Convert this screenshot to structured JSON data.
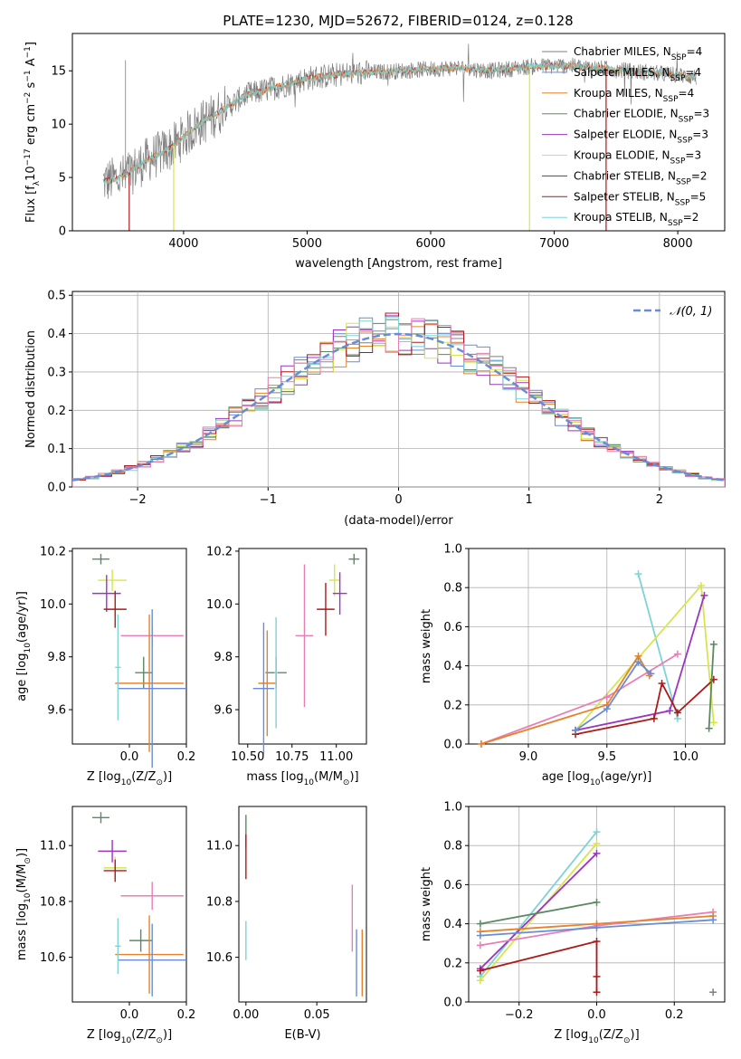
{
  "figure": {
    "title": "PLATE=1230, MJD=52672, FIBERID=0124, z=0.128"
  },
  "model_colors": {
    "Chabrier MILES": "#7f7f7f",
    "Salpeter MILES": "#6a8cd8",
    "Kroupa MILES": "#e8822a",
    "Chabrier ELODIE": "#5a8a62",
    "Salpeter ELODIE": "#9b35c0",
    "Kroupa ELODIE": "#d6e64a",
    "Chabrier STELIB": "#4a4a4a",
    "Salpeter STELIB": "#b01818",
    "Kroupa STELIB": "#7dd3d6",
    "Pink": "#e77fb6"
  },
  "chart_data": [
    {
      "type": "line",
      "id": "spectrum",
      "xlabel": "wavelength [Angstrom, rest frame]",
      "ylabel_main": "Flux [f",
      "ylabel_sub": "λ",
      "ylabel_mid": "10",
      "ylabel_sup1": "−17",
      "ylabel_tail": " erg cm",
      "ylabel_sup2": "−2",
      "ylabel_tail2": " s",
      "ylabel_sup3": "−1",
      "ylabel_tail3": " A",
      "ylabel_sup4": "−1",
      "ylabel_close": "]",
      "xlim": [
        3100,
        8380
      ],
      "ylim": [
        0,
        18.5
      ],
      "xticks": [
        "4000",
        "5000",
        "6000",
        "7000",
        "8000"
      ],
      "yticks": [
        "0",
        "5",
        "10",
        "15"
      ],
      "continuum_points": [
        [
          3350,
          4.6
        ],
        [
          3500,
          5.0
        ],
        [
          3700,
          6.6
        ],
        [
          3900,
          7.8
        ],
        [
          4100,
          9.8
        ],
        [
          4300,
          11.2
        ],
        [
          4500,
          12.7
        ],
        [
          4800,
          13.6
        ],
        [
          5000,
          14.3
        ],
        [
          5300,
          14.7
        ],
        [
          5600,
          14.9
        ],
        [
          5900,
          15.1
        ],
        [
          6200,
          15.3
        ],
        [
          6500,
          15.0
        ],
        [
          6800,
          15.4
        ],
        [
          7100,
          15.5
        ],
        [
          7400,
          15.2
        ],
        [
          7700,
          14.9
        ],
        [
          8000,
          14.6
        ],
        [
          8150,
          14.4
        ]
      ],
      "legend": [
        {
          "label": "Chabrier MILES, N",
          "sub": "SSP",
          "tail": "=4",
          "color": "#7f7f7f"
        },
        {
          "label": "Salpeter MILES, N",
          "sub": "SSP",
          "tail": "=4",
          "color": "#6a8cd8"
        },
        {
          "label": "Kroupa MILES, N",
          "sub": "SSP",
          "tail": "=4",
          "color": "#e8822a"
        },
        {
          "label": "Chabrier ELODIE, N",
          "sub": "SSP",
          "tail": "=3",
          "color": "#5a8a62"
        },
        {
          "label": "Salpeter ELODIE, N",
          "sub": "SSP",
          "tail": "=3",
          "color": "#9b35c0"
        },
        {
          "label": "Kroupa ELODIE, N",
          "sub": "SSP",
          "tail": "=3",
          "color": "#d6e64a"
        },
        {
          "label": "Chabrier STELIB, N",
          "sub": "SSP",
          "tail": "=2",
          "color": "#4a4a4a"
        },
        {
          "label": "Salpeter STELIB, N",
          "sub": "SSP",
          "tail": "=5",
          "color": "#b01818"
        },
        {
          "label": "Kroupa STELIB, N",
          "sub": "SSP",
          "tail": "=2",
          "color": "#7dd3d6"
        }
      ]
    },
    {
      "type": "bar",
      "id": "histogram",
      "xlabel": "(data-model)/error",
      "ylabel": "Normed distribution",
      "xlim": [
        -2.5,
        2.5
      ],
      "ylim": [
        0,
        0.51
      ],
      "xticks": [
        -2,
        -1,
        0,
        1,
        2
      ],
      "xtick_labels": [
        "−2",
        "−1",
        "0",
        "1",
        "2"
      ],
      "yticks": [
        0,
        0.1,
        0.2,
        0.3,
        0.4,
        0.5
      ],
      "ytick_labels": [
        "0.0",
        "0.1",
        "0.2",
        "0.3",
        "0.4",
        "0.5"
      ],
      "bin_width": 0.1,
      "bin_start": -2.5,
      "series_colors": [
        "#7f7f7f",
        "#6a8cd8",
        "#e8822a",
        "#5a8a62",
        "#9b35c0",
        "#d6e64a",
        "#b01818",
        "#7dd3d6",
        "#e77fb6"
      ],
      "gaussian_label": "𝒩(0, 1)",
      "gaussian_color": "#6a8cd8"
    },
    {
      "type": "scatter",
      "id": "age-vs-z",
      "xlabel": "Z [log",
      "xlabel_sub": "10",
      "xlabel_tail": "(Z/Z",
      "xlabel_sub2": "⊙",
      "xlabel_close": ")]",
      "ylabel": "age  [log",
      "ylabel_sub": "10",
      "ylabel_tail": "(age/yr)]",
      "xlim": [
        -0.2,
        0.2
      ],
      "ylim": [
        9.47,
        10.21
      ],
      "xticks": [
        "0.0",
        "0.2"
      ],
      "yticks": [
        "9.6",
        "9.8",
        "10.0",
        "10.2"
      ],
      "points": [
        {
          "x": -0.1,
          "xerr": 0.03,
          "y": 10.17,
          "yerr": 0.02,
          "color": "#5a8a62"
        },
        {
          "x": -0.06,
          "xerr": 0.05,
          "y": 10.09,
          "yerr": 0.04,
          "color": "#d6e64a"
        },
        {
          "x": -0.08,
          "xerr": 0.05,
          "y": 10.04,
          "yerr": 0.07,
          "color": "#9b35c0"
        },
        {
          "x": -0.05,
          "xerr": 0.04,
          "y": 9.98,
          "yerr": 0.07,
          "color": "#b01818"
        },
        {
          "x": 0.08,
          "xerr": 0.11,
          "y": 9.88,
          "yerr": 0.04,
          "color": "#e77fb6"
        },
        {
          "x": 0.05,
          "xerr": 0.03,
          "y": 9.74,
          "yerr": 0.06,
          "color": "#5a8a62"
        },
        {
          "x": 0.07,
          "xerr": 0.12,
          "y": 9.7,
          "yerr": 0.26,
          "color": "#e8822a"
        },
        {
          "x": 0.08,
          "xerr": 0.12,
          "y": 9.68,
          "yerr": 0.3,
          "color": "#6a8cd8"
        },
        {
          "x": -0.04,
          "xerr": 0.01,
          "y": 9.76,
          "yerr": 0.2,
          "color": "#7dd3d6"
        }
      ]
    },
    {
      "type": "scatter",
      "id": "age-vs-mass",
      "xlabel": "mass [log",
      "xlabel_sub": "10",
      "xlabel_tail": "(M/M",
      "xlabel_sub2": "⊙",
      "xlabel_close": ")]",
      "xlim": [
        10.45,
        11.17
      ],
      "ylim": [
        9.47,
        10.21
      ],
      "xticks": [
        "10.50",
        "10.75",
        "11.00"
      ],
      "yticks": [
        "9.6",
        "9.8",
        "10.0",
        "10.2"
      ],
      "points": [
        {
          "x": 11.1,
          "xerr": 0.03,
          "y": 10.17,
          "yerr": 0.02,
          "color": "#5a8a62"
        },
        {
          "x": 10.99,
          "xerr": 0.03,
          "y": 10.09,
          "yerr": 0.06,
          "color": "#d6e64a"
        },
        {
          "x": 11.02,
          "xerr": 0.04,
          "y": 10.04,
          "yerr": 0.08,
          "color": "#9b35c0"
        },
        {
          "x": 10.94,
          "xerr": 0.05,
          "y": 9.98,
          "yerr": 0.1,
          "color": "#b01818"
        },
        {
          "x": 10.82,
          "xerr": 0.05,
          "y": 9.88,
          "yerr": 0.27,
          "color": "#e77fb6"
        },
        {
          "x": 10.66,
          "xerr": 0.06,
          "y": 9.74,
          "yerr": 0.06,
          "color": "#5a8a62"
        },
        {
          "x": 10.61,
          "xerr": 0.05,
          "y": 9.7,
          "yerr": 0.2,
          "color": "#e8822a"
        },
        {
          "x": 10.59,
          "xerr": 0.06,
          "y": 9.68,
          "yerr": 0.25,
          "color": "#6a8cd8"
        },
        {
          "x": 10.66,
          "xerr": 0.01,
          "y": 9.74,
          "yerr": 0.21,
          "color": "#7dd3d6"
        }
      ]
    },
    {
      "type": "line",
      "id": "mass-weight-vs-age",
      "xlabel": "age  [log",
      "xlabel_sub": "10",
      "xlabel_tail": "(age/yr)]",
      "ylabel": "mass weight",
      "xlim": [
        8.62,
        10.25
      ],
      "ylim": [
        0,
        1.0
      ],
      "xticks": [
        "9.0",
        "9.5",
        "10.0"
      ],
      "yticks": [
        "0.0",
        "0.2",
        "0.4",
        "0.6",
        "0.8",
        "1.0"
      ],
      "series": [
        {
          "color": "#7dd3d6",
          "points": [
            [
              9.7,
              0.87
            ],
            [
              9.95,
              0.13
            ]
          ]
        },
        {
          "color": "#d6e64a",
          "points": [
            [
              9.3,
              0.07
            ],
            [
              10.1,
              0.81
            ],
            [
              10.18,
              0.11
            ]
          ]
        },
        {
          "color": "#9b35c0",
          "points": [
            [
              9.3,
              0.07
            ],
            [
              9.9,
              0.17
            ],
            [
              10.12,
              0.76
            ]
          ]
        },
        {
          "color": "#b01818",
          "points": [
            [
              9.3,
              0.05
            ],
            [
              9.8,
              0.13
            ],
            [
              9.85,
              0.31
            ],
            [
              9.95,
              0.16
            ],
            [
              10.18,
              0.33
            ]
          ]
        },
        {
          "color": "#5a8a62",
          "points": [
            [
              10.15,
              0.08
            ],
            [
              10.18,
              0.51
            ]
          ]
        },
        {
          "color": "#e77fb6",
          "points": [
            [
              8.7,
              0.0
            ],
            [
              9.5,
              0.24
            ],
            [
              9.95,
              0.46
            ]
          ]
        },
        {
          "color": "#e8822a",
          "points": [
            [
              8.7,
              0.0
            ],
            [
              9.5,
              0.2
            ],
            [
              9.7,
              0.45
            ],
            [
              9.77,
              0.35
            ]
          ]
        },
        {
          "color": "#6a8cd8",
          "points": [
            [
              9.3,
              0.07
            ],
            [
              9.5,
              0.18
            ],
            [
              9.7,
              0.42
            ],
            [
              9.78,
              0.36
            ]
          ]
        }
      ]
    },
    {
      "type": "scatter",
      "id": "mass-vs-z",
      "xlabel": "Z [log",
      "xlabel_sub": "10",
      "xlabel_tail": "(Z/Z",
      "xlabel_sub2": "⊙",
      "xlabel_close": ")]",
      "ylabel": "mass [log",
      "ylabel_sub": "10",
      "ylabel_tail": "(M/M",
      "ylabel_sub2": "⊙",
      "ylabel_close": ")]",
      "xlim": [
        -0.2,
        0.2
      ],
      "ylim": [
        10.44,
        11.14
      ],
      "xticks": [
        "0.0",
        "0.2"
      ],
      "yticks": [
        "10.6",
        "10.8",
        "11.0"
      ],
      "points": [
        {
          "x": -0.1,
          "xerr": 0.03,
          "y": 11.1,
          "yerr": 0.02,
          "color": "#5a8a62"
        },
        {
          "x": -0.06,
          "xerr": 0.05,
          "y": 10.98,
          "yerr": 0.04,
          "color": "#9b35c0"
        },
        {
          "x": -0.05,
          "xerr": 0.04,
          "y": 10.92,
          "yerr": 0.04,
          "color": "#d6e64a"
        },
        {
          "x": -0.05,
          "xerr": 0.04,
          "y": 10.91,
          "yerr": 0.04,
          "color": "#b01818"
        },
        {
          "x": 0.08,
          "xerr": 0.11,
          "y": 10.82,
          "yerr": 0.05,
          "color": "#e77fb6"
        },
        {
          "x": 0.04,
          "xerr": 0.04,
          "y": 10.66,
          "yerr": 0.04,
          "color": "#5a8a62"
        },
        {
          "x": 0.07,
          "xerr": 0.12,
          "y": 10.61,
          "yerr": 0.14,
          "color": "#e8822a"
        },
        {
          "x": 0.08,
          "xerr": 0.12,
          "y": 10.59,
          "yerr": 0.13,
          "color": "#6a8cd8"
        },
        {
          "x": -0.04,
          "xerr": 0.01,
          "y": 10.64,
          "yerr": 0.1,
          "color": "#7dd3d6"
        }
      ]
    },
    {
      "type": "scatter",
      "id": "mass-vs-ebv",
      "xlabel": "E(B-V)",
      "xlim": [
        -0.005,
        0.085
      ],
      "ylim": [
        10.44,
        11.14
      ],
      "xticks": [
        "0.00",
        "0.05"
      ],
      "yticks": [
        "10.6",
        "10.8",
        "11.0"
      ],
      "points": [
        {
          "x": 0.0,
          "xerr": 0,
          "y": 11.05,
          "yerr": 0.06,
          "color": "#5a8a62"
        },
        {
          "x": 0.0,
          "xerr": 0,
          "y": 10.96,
          "yerr": 0.08,
          "color": "#b01818"
        },
        {
          "x": 0.0,
          "xerr": 0,
          "y": 10.66,
          "yerr": 0.07,
          "color": "#7dd3d6"
        },
        {
          "x": 0.075,
          "xerr": 0,
          "y": 10.74,
          "yerr": 0.12,
          "color": "#e77fb6"
        },
        {
          "x": 0.078,
          "xerr": 0,
          "y": 10.58,
          "yerr": 0.12,
          "color": "#6a8cd8"
        },
        {
          "x": 0.082,
          "xerr": 0,
          "y": 10.58,
          "yerr": 0.12,
          "color": "#e8822a"
        }
      ]
    },
    {
      "type": "line",
      "id": "mass-weight-vs-z",
      "xlabel": "Z [log",
      "xlabel_sub": "10",
      "xlabel_tail": "(Z/Z",
      "xlabel_sub2": "⊙",
      "xlabel_close": ")]",
      "ylabel": "mass weight",
      "xlim": [
        -0.33,
        0.33
      ],
      "ylim": [
        0,
        1.0
      ],
      "xticks": [
        "−0.2",
        "0.0",
        "0.2"
      ],
      "xtick_values": [
        -0.2,
        0.0,
        0.2
      ],
      "yticks": [
        "0.0",
        "0.2",
        "0.4",
        "0.6",
        "0.8",
        "1.0"
      ],
      "series": [
        {
          "color": "#7dd3d6",
          "points": [
            [
              -0.3,
              0.13
            ],
            [
              0.0,
              0.87
            ]
          ]
        },
        {
          "color": "#d6e64a",
          "points": [
            [
              -0.3,
              0.11
            ],
            [
              0.0,
              0.81
            ]
          ]
        },
        {
          "color": "#9b35c0",
          "points": [
            [
              -0.3,
              0.17
            ],
            [
              0.0,
              0.76
            ]
          ]
        },
        {
          "color": "#b01818",
          "points": [
            [
              -0.3,
              0.16
            ],
            [
              0.0,
              0.31
            ],
            [
              0.0,
              0.13
            ],
            [
              0.0,
              0.05
            ]
          ]
        },
        {
          "color": "#5a8a62",
          "points": [
            [
              -0.3,
              0.4
            ],
            [
              0.0,
              0.51
            ]
          ]
        },
        {
          "color": "#e77fb6",
          "points": [
            [
              -0.3,
              0.29
            ],
            [
              0.0,
              0.39
            ],
            [
              0.3,
              0.46
            ]
          ]
        },
        {
          "color": "#e8822a",
          "points": [
            [
              -0.3,
              0.36
            ],
            [
              0.0,
              0.4
            ],
            [
              0.3,
              0.44
            ]
          ]
        },
        {
          "color": "#6a8cd8",
          "points": [
            [
              -0.3,
              0.34
            ],
            [
              0.0,
              0.38
            ],
            [
              0.3,
              0.42
            ]
          ]
        },
        {
          "color": "#7f7f7f",
          "points": [
            [
              0.3,
              0.05
            ]
          ]
        }
      ]
    }
  ]
}
